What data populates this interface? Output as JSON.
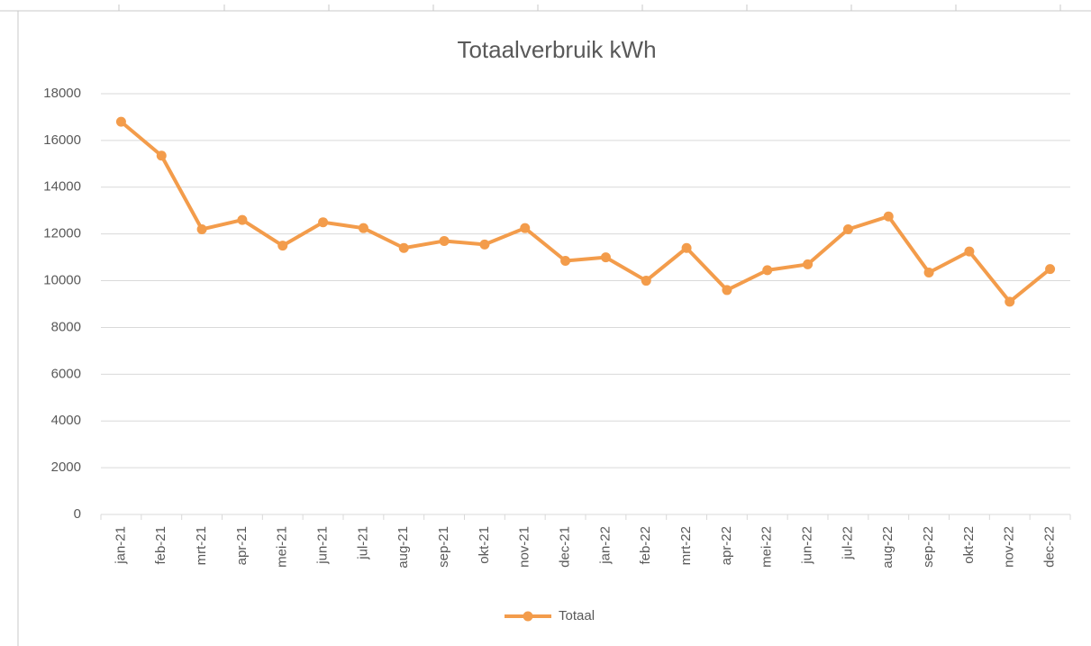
{
  "chart_data": {
    "type": "line",
    "title": "Totaalverbruik kWh",
    "categories": [
      "jan-21",
      "feb-21",
      "mrt-21",
      "apr-21",
      "mei-21",
      "jun-21",
      "jul-21",
      "aug-21",
      "sep-21",
      "okt-21",
      "nov-21",
      "dec-21",
      "jan-22",
      "feb-22",
      "mrt-22",
      "apr-22",
      "mei-22",
      "jun-22",
      "jul-22",
      "aug-22",
      "sep-22",
      "okt-22",
      "nov-22",
      "dec-22"
    ],
    "series": [
      {
        "name": "Totaal",
        "color": "#f39c4b",
        "values": [
          16800,
          15350,
          12200,
          12600,
          11500,
          12500,
          12250,
          11400,
          11700,
          11550,
          12250,
          10850,
          11000,
          10000,
          11400,
          9600,
          10450,
          10700,
          12200,
          12750,
          10350,
          11250,
          9100,
          10500
        ]
      }
    ],
    "ylim": [
      0,
      18000
    ],
    "yticks": [
      0,
      2000,
      4000,
      6000,
      8000,
      10000,
      12000,
      14000,
      16000,
      18000
    ],
    "grid": true,
    "legend": "bottom"
  }
}
